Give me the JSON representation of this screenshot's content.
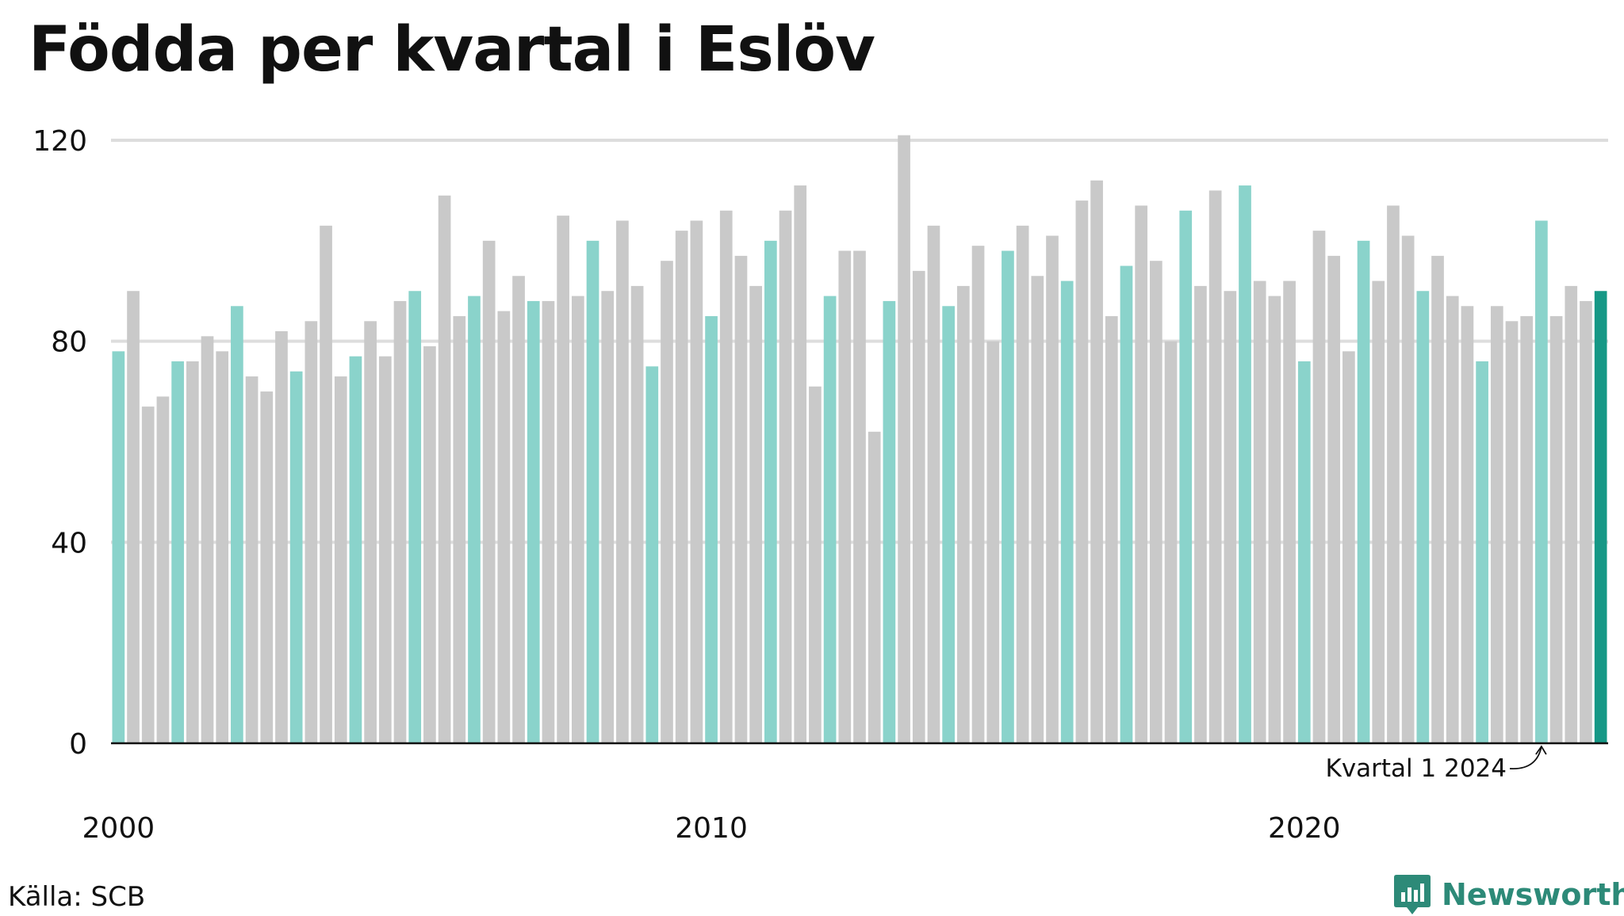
{
  "title": "Födda per kvartal i Eslöv",
  "source": "Källa: SCB",
  "brand": "Newsworthy",
  "colors": {
    "q1": "#8ad3cb",
    "other": "#c9c9c9",
    "latest": "#169886",
    "grid": "#dddddd",
    "axis": "#111111",
    "brand": "#2d8a78"
  },
  "chart_data": {
    "type": "bar",
    "title": "Födda per kvartal i Eslöv",
    "xlabel": "",
    "ylabel": "",
    "ylim": [
      0,
      120
    ],
    "yticks": [
      0,
      40,
      80,
      120
    ],
    "x_tick_labels": [
      {
        "label": "2000",
        "index": 0
      },
      {
        "label": "2010",
        "index": 40
      },
      {
        "label": "2020",
        "index": 80
      }
    ],
    "grid": true,
    "legend": "none",
    "annotation": {
      "text": "Kvartal 1 2024",
      "index": 96
    },
    "start_year": 2000,
    "values": [
      78,
      90,
      67,
      69,
      76,
      76,
      81,
      78,
      87,
      73,
      70,
      82,
      74,
      84,
      103,
      73,
      77,
      84,
      77,
      88,
      90,
      79,
      109,
      85,
      89,
      100,
      86,
      93,
      88,
      88,
      105,
      89,
      100,
      90,
      104,
      91,
      75,
      96,
      102,
      104,
      85,
      106,
      97,
      91,
      100,
      106,
      111,
      71,
      89,
      98,
      98,
      62,
      88,
      121,
      94,
      103,
      87,
      91,
      99,
      80,
      98,
      103,
      93,
      101,
      92,
      108,
      112,
      85,
      95,
      107,
      96,
      80,
      106,
      91,
      110,
      90,
      111,
      92,
      89,
      92,
      76,
      102,
      97,
      78,
      100,
      92,
      107,
      101,
      90,
      97,
      89,
      87,
      76,
      87,
      84,
      85,
      104,
      85,
      91,
      88,
      90
    ]
  }
}
